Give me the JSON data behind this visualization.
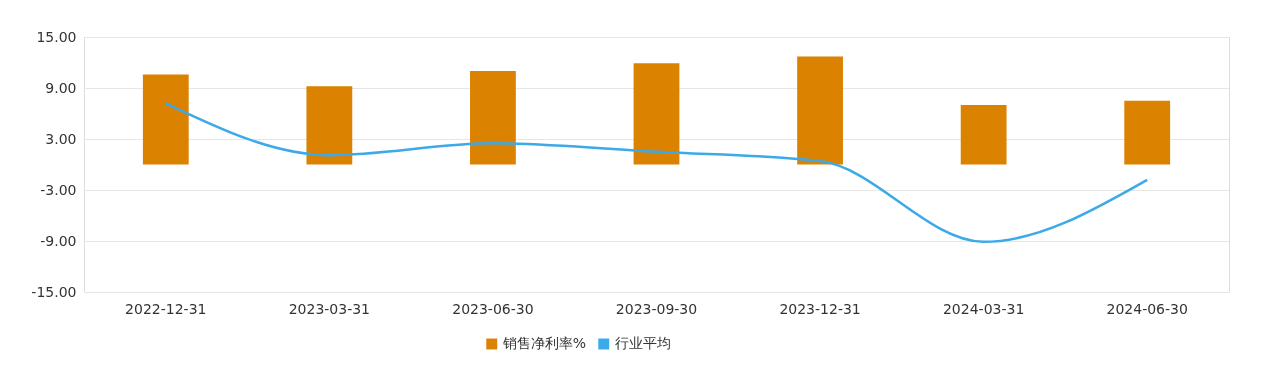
{
  "chart_data": {
    "type": "bar",
    "categories": [
      "2022-12-31",
      "2023-03-31",
      "2023-06-30",
      "2023-09-30",
      "2023-12-31",
      "2024-03-31",
      "2024-06-30"
    ],
    "series": [
      {
        "name": "销售净利率%",
        "color": "#db8200",
        "values": [
          10.6,
          9.2,
          11.0,
          11.9,
          12.7,
          7.0,
          7.5
        ]
      },
      {
        "name": "行业平均",
        "type": "line",
        "color": "#3ca9e8",
        "values": [
          7.2,
          1.1,
          2.5,
          1.5,
          0.4,
          -9.1,
          -1.8
        ]
      }
    ],
    "ylim": [
      -15,
      15
    ],
    "yticks": [
      {
        "value": -15,
        "label": "-15.00"
      },
      {
        "value": -9,
        "label": "-9.00"
      },
      {
        "value": -3,
        "label": "-3.00"
      },
      {
        "value": 3,
        "label": "3.00"
      },
      {
        "value": 9,
        "label": "9.00"
      },
      {
        "value": 15,
        "label": "15.00"
      }
    ],
    "grid": "y",
    "legend": "bottom",
    "marker": "none"
  }
}
